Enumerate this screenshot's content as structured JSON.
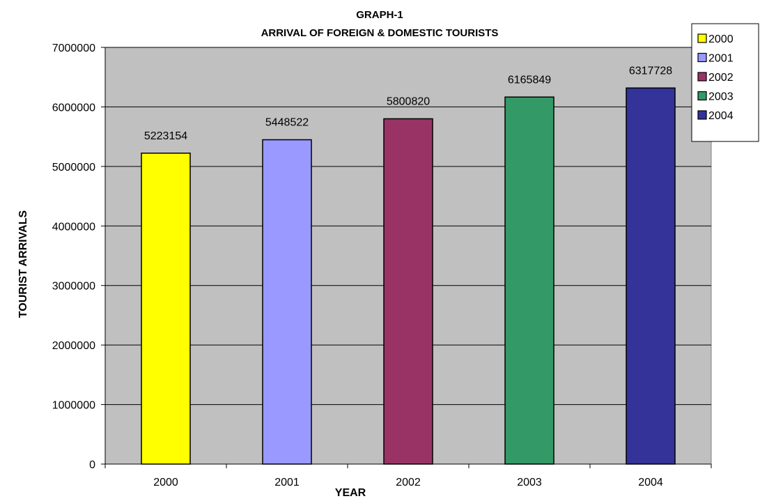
{
  "chart_data": {
    "type": "bar",
    "title": "GRAPH-1",
    "subtitle": "ARRIVAL OF FOREIGN & DOMESTIC TOURISTS",
    "xlabel": "YEAR",
    "ylabel": "TOURIST ARRIVALS",
    "categories": [
      "2000",
      "2001",
      "2002",
      "2003",
      "2004"
    ],
    "values": [
      5223154,
      5448522,
      5800820,
      6165849,
      6317728
    ],
    "data_labels": [
      "5223154",
      "5448522",
      "5800820",
      "6165849",
      "6317728"
    ],
    "colors": [
      "#ffff00",
      "#9999ff",
      "#993366",
      "#339966",
      "#333399"
    ],
    "ylim": [
      0,
      7000000
    ],
    "yticks": [
      0,
      1000000,
      2000000,
      3000000,
      4000000,
      5000000,
      6000000,
      7000000
    ],
    "ytick_labels": [
      "0",
      "1000000",
      "2000000",
      "3000000",
      "4000000",
      "5000000",
      "6000000",
      "7000000"
    ],
    "plot_background": "#c0c0c0",
    "grid": true,
    "legend": {
      "placement": "top-right",
      "entries": [
        "2000",
        "2001",
        "2002",
        "2003",
        "2004"
      ]
    }
  }
}
